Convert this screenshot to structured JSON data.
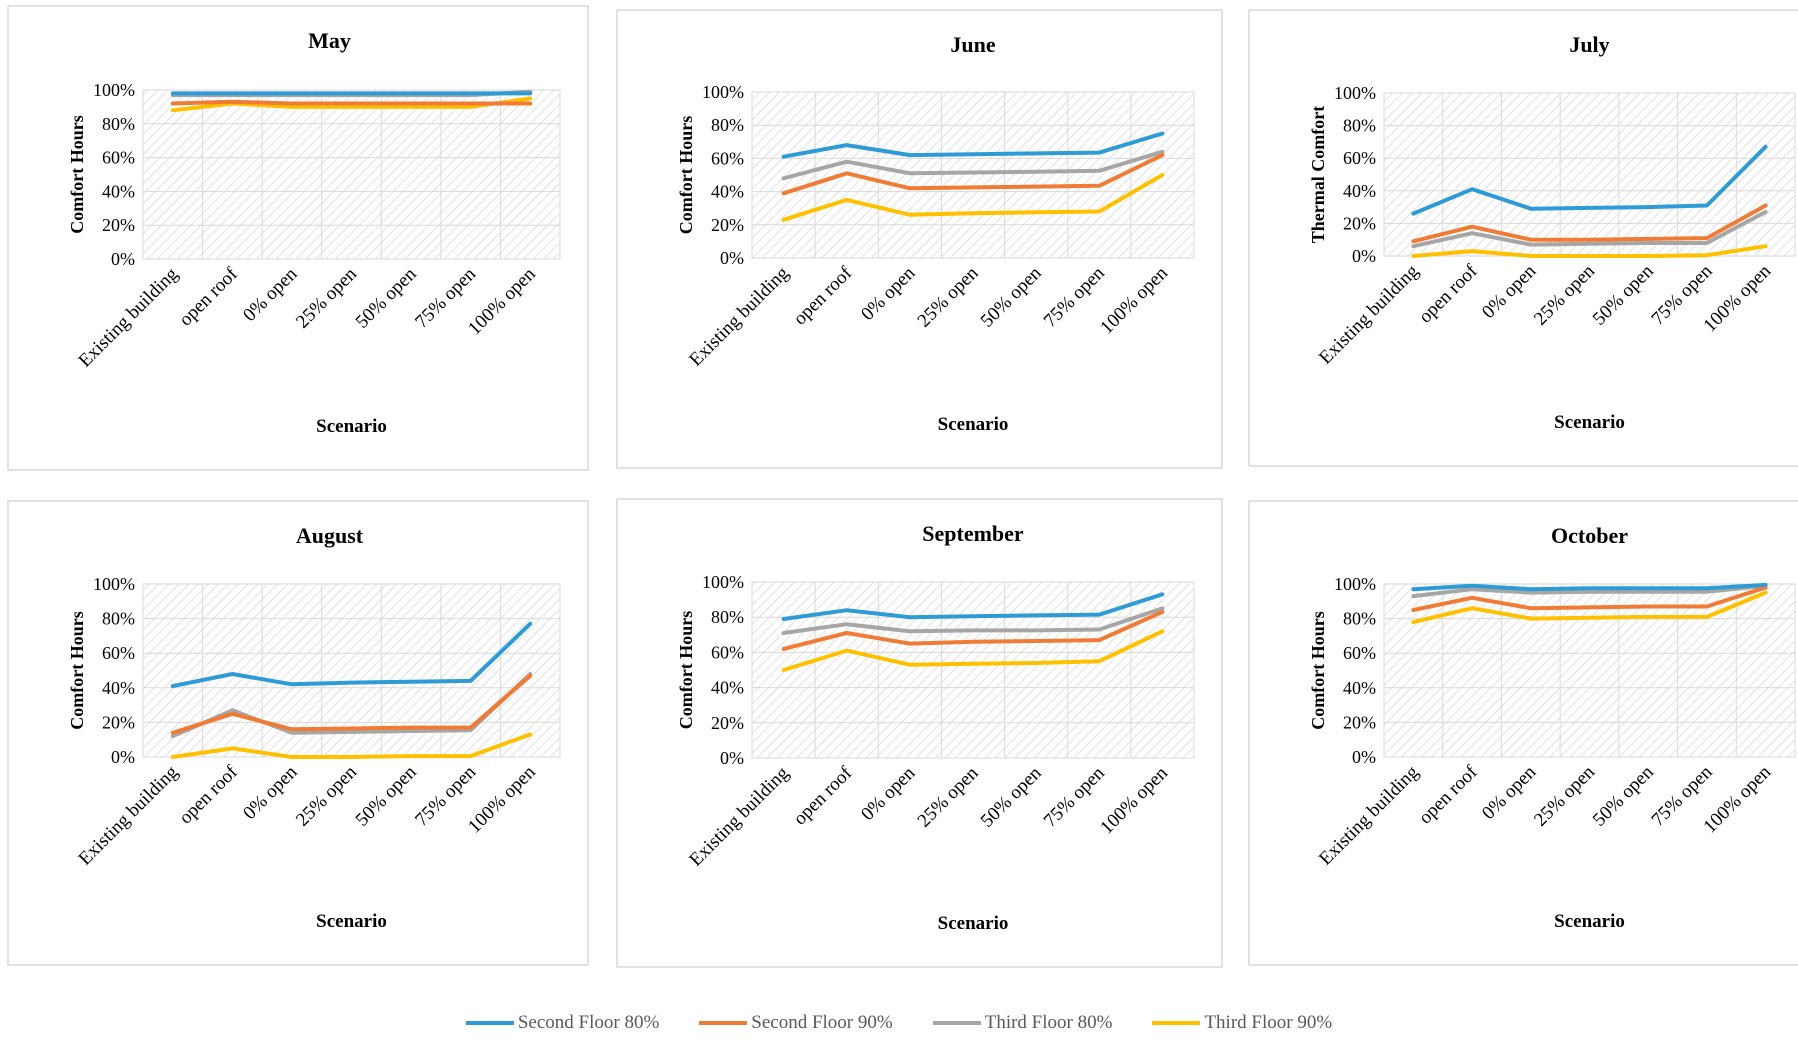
{
  "colors": {
    "second_floor_80": "#2E9BD6",
    "second_floor_90": "#F07B35",
    "third_floor_80": "#A6A6A6",
    "third_floor_90": "#FFC000"
  },
  "legend": [
    {
      "label": "Second Floor 80%",
      "color": "#2E9BD6"
    },
    {
      "label": "Second Floor 90%",
      "color": "#F07B35"
    },
    {
      "label": "Third Floor 80%",
      "color": "#A6A6A6"
    },
    {
      "label": "Third Floor 90%",
      "color": "#FFC000"
    }
  ],
  "chart_data": [
    {
      "type": "line",
      "title": "May",
      "xlabel": "Scenario",
      "ylabel": "Comfort Hours",
      "ylim": [
        0,
        1
      ],
      "yticks": [
        "0%",
        "20%",
        "40%",
        "60%",
        "80%",
        "100%"
      ],
      "categories": [
        "Existing building",
        "open roof",
        "0% open",
        "25% open",
        "50% open",
        "75% open",
        "100% open"
      ],
      "grid": true,
      "series": [
        {
          "name": "Second Floor 80%",
          "values": [
            0.98,
            0.98,
            0.98,
            0.98,
            0.98,
            0.98,
            0.98
          ]
        },
        {
          "name": "Second Floor 90%",
          "values": [
            0.92,
            0.93,
            0.92,
            0.92,
            0.92,
            0.92,
            0.92
          ]
        },
        {
          "name": "Third Floor 80%",
          "values": [
            0.97,
            0.97,
            0.97,
            0.97,
            0.97,
            0.97,
            0.99
          ]
        },
        {
          "name": "Third Floor 90%",
          "values": [
            0.88,
            0.92,
            0.9,
            0.9,
            0.9,
            0.9,
            0.95
          ]
        }
      ]
    },
    {
      "type": "line",
      "title": "June",
      "xlabel": "Scenario",
      "ylabel": "Comfort Hours",
      "ylim": [
        0,
        1
      ],
      "yticks": [
        "0%",
        "20%",
        "40%",
        "60%",
        "80%",
        "100%"
      ],
      "categories": [
        "Existing building",
        "open roof",
        "0% open",
        "25% open",
        "50% open",
        "75% open",
        "100% open"
      ],
      "grid": true,
      "series": [
        {
          "name": "Second Floor 80%",
          "values": [
            0.61,
            0.68,
            0.62,
            0.625,
            0.63,
            0.635,
            0.75
          ]
        },
        {
          "name": "Second Floor 90%",
          "values": [
            0.39,
            0.51,
            0.42,
            0.425,
            0.43,
            0.435,
            0.62
          ]
        },
        {
          "name": "Third Floor 80%",
          "values": [
            0.48,
            0.58,
            0.51,
            0.515,
            0.52,
            0.525,
            0.64
          ]
        },
        {
          "name": "Third Floor 90%",
          "values": [
            0.23,
            0.35,
            0.26,
            0.27,
            0.275,
            0.28,
            0.5
          ]
        }
      ]
    },
    {
      "type": "line",
      "title": "July",
      "xlabel": "Scenario",
      "ylabel": "Thermal Comfort",
      "ylim": [
        0,
        1
      ],
      "yticks": [
        "0%",
        "20%",
        "40%",
        "60%",
        "80%",
        "100%"
      ],
      "categories": [
        "Existing building",
        "open roof",
        "0% open",
        "25% open",
        "50% open",
        "75% open",
        "100% open"
      ],
      "grid": true,
      "series": [
        {
          "name": "Second Floor 80%",
          "values": [
            0.26,
            0.41,
            0.29,
            0.295,
            0.3,
            0.31,
            0.67
          ]
        },
        {
          "name": "Second Floor 90%",
          "values": [
            0.09,
            0.18,
            0.1,
            0.1,
            0.105,
            0.11,
            0.31
          ]
        },
        {
          "name": "Third Floor 80%",
          "values": [
            0.06,
            0.14,
            0.07,
            0.075,
            0.08,
            0.08,
            0.27
          ]
        },
        {
          "name": "Third Floor 90%",
          "values": [
            0.0,
            0.03,
            0.0,
            0.0,
            0.0,
            0.005,
            0.06
          ]
        }
      ]
    },
    {
      "type": "line",
      "title": "August",
      "xlabel": "Scenario",
      "ylabel": "Comfort Hours",
      "ylim": [
        0,
        1
      ],
      "yticks": [
        "0%",
        "20%",
        "40%",
        "60%",
        "80%",
        "100%"
      ],
      "categories": [
        "Existing building",
        "open roof",
        "0% open",
        "25% open",
        "50% open",
        "75% open",
        "100% open"
      ],
      "grid": true,
      "series": [
        {
          "name": "Second Floor 80%",
          "values": [
            0.41,
            0.48,
            0.42,
            0.43,
            0.435,
            0.44,
            0.77
          ]
        },
        {
          "name": "Second Floor 90%",
          "values": [
            0.14,
            0.25,
            0.16,
            0.165,
            0.17,
            0.17,
            0.47
          ]
        },
        {
          "name": "Third Floor 80%",
          "values": [
            0.12,
            0.27,
            0.14,
            0.145,
            0.15,
            0.155,
            0.48
          ]
        },
        {
          "name": "Third Floor 90%",
          "values": [
            0.0,
            0.05,
            0.0,
            0.0,
            0.005,
            0.005,
            0.13
          ]
        }
      ]
    },
    {
      "type": "line",
      "title": "September",
      "xlabel": "Scenario",
      "ylabel": "Comfort Hours",
      "ylim": [
        0,
        1
      ],
      "yticks": [
        "0%",
        "20%",
        "40%",
        "60%",
        "80%",
        "100%"
      ],
      "categories": [
        "Existing building",
        "open roof",
        "0% open",
        "25% open",
        "50% open",
        "75% open",
        "100% open"
      ],
      "grid": true,
      "series": [
        {
          "name": "Second Floor 80%",
          "values": [
            0.79,
            0.84,
            0.8,
            0.805,
            0.81,
            0.815,
            0.93
          ]
        },
        {
          "name": "Second Floor 90%",
          "values": [
            0.62,
            0.71,
            0.65,
            0.66,
            0.665,
            0.67,
            0.83
          ]
        },
        {
          "name": "Third Floor 80%",
          "values": [
            0.71,
            0.76,
            0.72,
            0.725,
            0.725,
            0.73,
            0.85
          ]
        },
        {
          "name": "Third Floor 90%",
          "values": [
            0.5,
            0.61,
            0.53,
            0.535,
            0.54,
            0.55,
            0.72
          ]
        }
      ]
    },
    {
      "type": "line",
      "title": "October",
      "xlabel": "Scenario",
      "ylabel": "Comfort Hours",
      "ylim": [
        0,
        1
      ],
      "yticks": [
        "0%",
        "20%",
        "40%",
        "60%",
        "80%",
        "100%"
      ],
      "categories": [
        "Existing building",
        "open roof",
        "0% open",
        "25% open",
        "50% open",
        "75% open",
        "100% open"
      ],
      "grid": true,
      "series": [
        {
          "name": "Second Floor 80%",
          "values": [
            0.97,
            0.99,
            0.97,
            0.975,
            0.975,
            0.975,
            0.995
          ]
        },
        {
          "name": "Second Floor 90%",
          "values": [
            0.85,
            0.92,
            0.86,
            0.865,
            0.87,
            0.87,
            0.98
          ]
        },
        {
          "name": "Third Floor 80%",
          "values": [
            0.93,
            0.97,
            0.95,
            0.955,
            0.955,
            0.955,
            0.99
          ]
        },
        {
          "name": "Third Floor 90%",
          "values": [
            0.78,
            0.86,
            0.8,
            0.805,
            0.81,
            0.81,
            0.95
          ]
        }
      ]
    }
  ]
}
